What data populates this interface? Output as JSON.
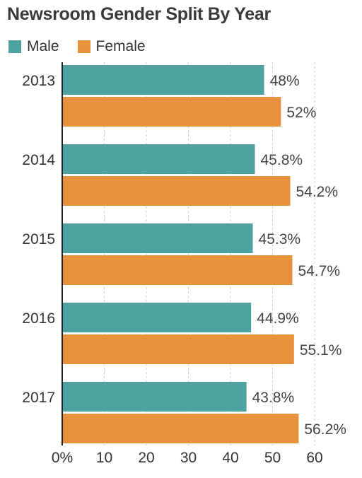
{
  "chart_data": {
    "type": "bar",
    "orientation": "horizontal",
    "title": "Newsroom Gender Split By Year",
    "categories": [
      "2013",
      "2014",
      "2015",
      "2016",
      "2017"
    ],
    "series": [
      {
        "name": "Male",
        "color": "#4ea29f",
        "values": [
          48,
          45.8,
          45.3,
          44.9,
          43.8
        ],
        "labels": [
          "48%",
          "45.8%",
          "45.3%",
          "44.9%",
          "43.8%"
        ]
      },
      {
        "name": "Female",
        "color": "#e8913d",
        "values": [
          52,
          54.2,
          54.7,
          55.1,
          56.2
        ],
        "labels": [
          "52%",
          "54.2%",
          "54.7%",
          "55.1%",
          "56.2%"
        ]
      }
    ],
    "xlim": [
      0,
      60
    ],
    "xticks": [
      0,
      10,
      20,
      30,
      40,
      50,
      60
    ],
    "xtick_labels": [
      "0%",
      "10",
      "20",
      "30",
      "40",
      "50",
      "60"
    ],
    "grid": "vertical dashed",
    "legend": "top-left"
  }
}
